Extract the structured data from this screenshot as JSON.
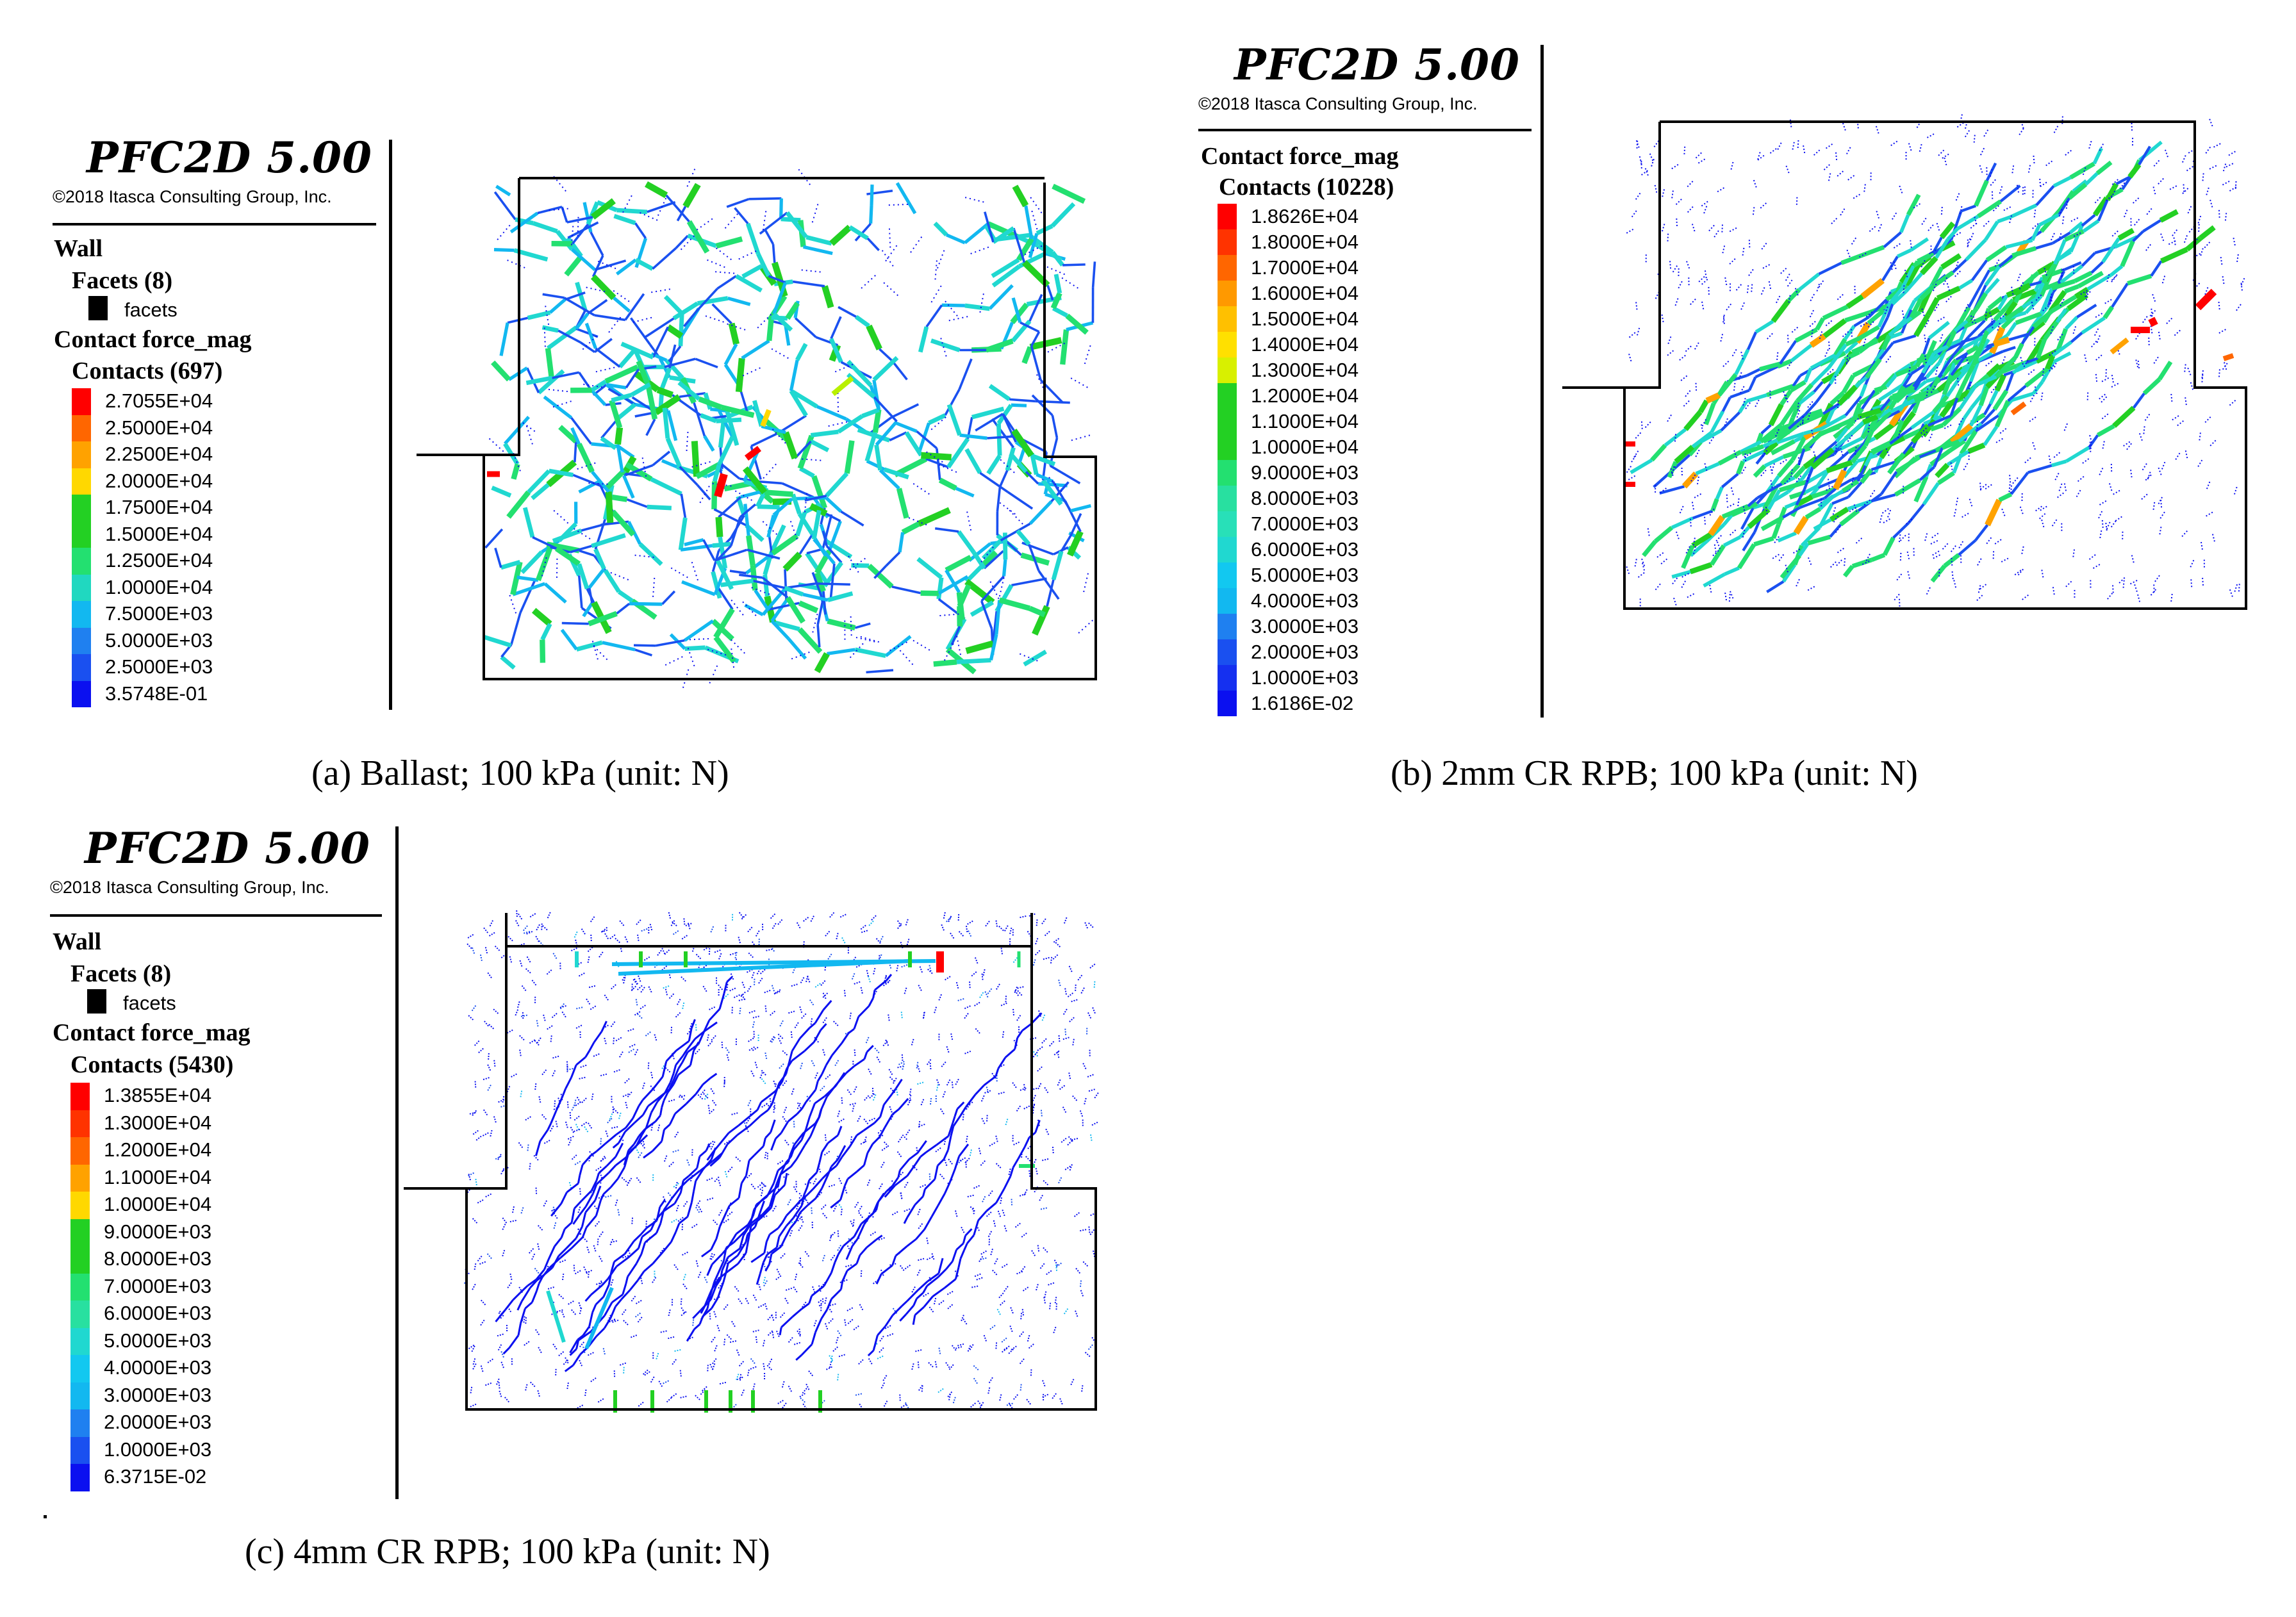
{
  "colors": {
    "scale": [
      "#ff0000",
      "#ff3300",
      "#ff6600",
      "#ffa200",
      "#ffd800",
      "#b8f000",
      "#23d023",
      "#23e070",
      "#28e0a0",
      "#20d8d0",
      "#12b8f0",
      "#1f80f0",
      "#1a50f0",
      "#0b10f0"
    ],
    "wall": "#000000"
  },
  "panels": [
    {
      "id": "a",
      "software": "PFC2D 5.00",
      "copyright": "©2018 Itasca Consulting Group, Inc.",
      "wall_label": "Wall",
      "facets_label": "Facets (8)",
      "facets_item": "facets",
      "contact_label": "Contact force_mag",
      "contacts_label": "Contacts (697)",
      "scale_values": [
        "2.7055E+04",
        "2.5000E+04",
        "2.2500E+04",
        "2.0000E+04",
        "1.7500E+04",
        "1.5000E+04",
        "1.2500E+04",
        "1.0000E+04",
        "7.5000E+03",
        "5.0000E+03",
        "2.5000E+03",
        "3.5748E-01"
      ],
      "scale_colors": [
        "#ff0000",
        "#ff6600",
        "#ffa200",
        "#ffd800",
        "#23d023",
        "#23d023",
        "#23e070",
        "#20d8c0",
        "#12b8f0",
        "#1f80f0",
        "#1a50f0",
        "#0b10f0"
      ],
      "caption": "(a) Ballast; 100 kPa (unit: N)"
    },
    {
      "id": "b",
      "software": "PFC2D 5.00",
      "copyright": "©2018 Itasca Consulting Group, Inc.",
      "contact_label": "Contact force_mag",
      "contacts_label": "Contacts (10228)",
      "scale_values": [
        "1.8626E+04",
        "1.8000E+04",
        "1.7000E+04",
        "1.6000E+04",
        "1.5000E+04",
        "1.4000E+04",
        "1.3000E+04",
        "1.2000E+04",
        "1.1000E+04",
        "1.0000E+04",
        "9.0000E+03",
        "8.0000E+03",
        "7.0000E+03",
        "6.0000E+03",
        "5.0000E+03",
        "4.0000E+03",
        "3.0000E+03",
        "2.0000E+03",
        "1.0000E+03",
        "1.6186E-02"
      ],
      "scale_colors": [
        "#ff0000",
        "#ff3300",
        "#ff6600",
        "#ff9900",
        "#ffc000",
        "#ffe000",
        "#d8f000",
        "#23d023",
        "#23d023",
        "#23d023",
        "#23e070",
        "#28e0a0",
        "#28e0b8",
        "#20d8d0",
        "#12c8f0",
        "#12b8f0",
        "#1f80f0",
        "#1a50f0",
        "#1530f0",
        "#0b10f0"
      ],
      "caption": "(b) 2mm CR RPB; 100 kPa (unit: N)"
    },
    {
      "id": "c",
      "software": "PFC2D 5.00",
      "copyright": "©2018 Itasca Consulting Group, Inc.",
      "wall_label": "Wall",
      "facets_label": "Facets (8)",
      "facets_item": "facets",
      "contact_label": "Contact force_mag",
      "contacts_label": "Contacts (5430)",
      "scale_values": [
        "1.3855E+04",
        "1.3000E+04",
        "1.2000E+04",
        "1.1000E+04",
        "1.0000E+04",
        "9.0000E+03",
        "8.0000E+03",
        "7.0000E+03",
        "6.0000E+03",
        "5.0000E+03",
        "4.0000E+03",
        "3.0000E+03",
        "2.0000E+03",
        "1.0000E+03",
        "6.3715E-02"
      ],
      "scale_colors": [
        "#ff0000",
        "#ff3300",
        "#ff6600",
        "#ffa200",
        "#ffd800",
        "#23d023",
        "#23d023",
        "#23e070",
        "#28e0a0",
        "#20d8d0",
        "#12c8f0",
        "#12b8f0",
        "#1f80f0",
        "#1a50f0",
        "#0b10f0"
      ],
      "caption": "(c) 4mm CR RPB; 100 kPa (unit: N)"
    }
  ]
}
